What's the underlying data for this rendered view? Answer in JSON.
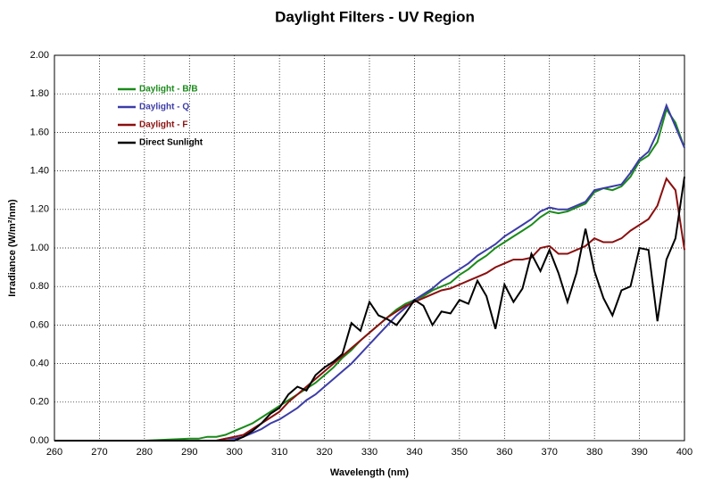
{
  "chart_data": {
    "type": "line",
    "title": "Daylight Filters - UV Region",
    "x_label": "Wavelength (nm)",
    "y_label": "Irradiance (W/m²/nm)",
    "x": [
      260,
      270,
      280,
      290,
      292,
      294,
      296,
      298,
      300,
      302,
      304,
      306,
      308,
      310,
      312,
      314,
      316,
      318,
      320,
      322,
      324,
      326,
      328,
      330,
      332,
      334,
      336,
      338,
      340,
      342,
      344,
      346,
      348,
      350,
      352,
      354,
      356,
      358,
      360,
      362,
      364,
      366,
      368,
      370,
      372,
      374,
      376,
      378,
      380,
      382,
      384,
      386,
      388,
      390,
      392,
      394,
      396,
      398,
      400
    ],
    "series": [
      {
        "name": "Daylight - B/B",
        "color": "#1a8a1a",
        "values": [
          0,
          0,
          0,
          0.01,
          0.01,
          0.02,
          0.02,
          0.03,
          0.05,
          0.07,
          0.09,
          0.12,
          0.15,
          0.18,
          0.21,
          0.24,
          0.27,
          0.3,
          0.34,
          0.38,
          0.43,
          0.47,
          0.52,
          0.56,
          0.6,
          0.64,
          0.68,
          0.71,
          0.73,
          0.75,
          0.78,
          0.8,
          0.82,
          0.86,
          0.89,
          0.93,
          0.96,
          1.0,
          1.03,
          1.06,
          1.09,
          1.12,
          1.16,
          1.19,
          1.18,
          1.19,
          1.21,
          1.23,
          1.29,
          1.31,
          1.3,
          1.32,
          1.37,
          1.45,
          1.48,
          1.55,
          1.72,
          1.65,
          1.52
        ]
      },
      {
        "name": "Daylight - Q",
        "color": "#3c3ca8",
        "values": [
          0,
          0,
          0,
          0,
          0,
          0,
          0,
          0.01,
          0.01,
          0.02,
          0.04,
          0.06,
          0.09,
          0.11,
          0.14,
          0.17,
          0.21,
          0.24,
          0.28,
          0.32,
          0.36,
          0.4,
          0.45,
          0.5,
          0.55,
          0.6,
          0.65,
          0.69,
          0.73,
          0.76,
          0.79,
          0.83,
          0.86,
          0.89,
          0.92,
          0.96,
          0.99,
          1.02,
          1.06,
          1.09,
          1.12,
          1.15,
          1.19,
          1.21,
          1.2,
          1.2,
          1.22,
          1.24,
          1.3,
          1.31,
          1.32,
          1.33,
          1.39,
          1.46,
          1.5,
          1.6,
          1.74,
          1.63,
          1.52
        ]
      },
      {
        "name": "Daylight - F",
        "color": "#8b0f0f",
        "values": [
          0,
          0,
          0,
          0,
          0,
          0,
          0,
          0.01,
          0.02,
          0.03,
          0.06,
          0.09,
          0.12,
          0.15,
          0.2,
          0.24,
          0.28,
          0.32,
          0.36,
          0.4,
          0.44,
          0.48,
          0.52,
          0.56,
          0.6,
          0.64,
          0.67,
          0.7,
          0.72,
          0.74,
          0.76,
          0.78,
          0.79,
          0.81,
          0.83,
          0.85,
          0.87,
          0.9,
          0.92,
          0.94,
          0.94,
          0.95,
          1.0,
          1.01,
          0.97,
          0.97,
          0.99,
          1.01,
          1.05,
          1.03,
          1.03,
          1.05,
          1.09,
          1.12,
          1.15,
          1.22,
          1.36,
          1.3,
          0.99
        ]
      },
      {
        "name": "Direct Sunlight",
        "color": "#000000",
        "values": [
          0,
          0,
          0,
          0,
          0,
          0,
          0,
          0,
          0,
          0.02,
          0.05,
          0.09,
          0.14,
          0.17,
          0.24,
          0.28,
          0.26,
          0.34,
          0.38,
          0.41,
          0.45,
          0.61,
          0.57,
          0.72,
          0.65,
          0.63,
          0.6,
          0.66,
          0.73,
          0.7,
          0.6,
          0.67,
          0.66,
          0.73,
          0.71,
          0.83,
          0.75,
          0.58,
          0.81,
          0.72,
          0.79,
          0.97,
          0.88,
          0.99,
          0.87,
          0.72,
          0.87,
          1.1,
          0.88,
          0.74,
          0.65,
          0.78,
          0.8,
          1.0,
          0.99,
          0.62,
          0.94,
          1.05,
          1.37
        ]
      }
    ],
    "xlim": [
      260,
      400
    ],
    "xticks": [
      260,
      270,
      280,
      290,
      300,
      310,
      320,
      330,
      340,
      350,
      360,
      370,
      380,
      390,
      400
    ],
    "ylim": [
      0,
      2
    ],
    "yticks": [
      {
        "value": 0,
        "label": "0.00"
      },
      {
        "value": 0.2,
        "label": "0.20"
      },
      {
        "value": 0.4,
        "label": "0.40"
      },
      {
        "value": 0.6,
        "label": "0.60"
      },
      {
        "value": 0.8,
        "label": "0.80"
      },
      {
        "value": 1,
        "label": "1.00"
      },
      {
        "value": 1.2,
        "label": "1.20"
      },
      {
        "value": 1.4,
        "label": "1.40"
      },
      {
        "value": 1.6,
        "label": "1.60"
      },
      {
        "value": 1.8,
        "label": "1.80"
      },
      {
        "value": 2,
        "label": "2.00"
      }
    ],
    "grid": true,
    "legend": "upper-left"
  }
}
